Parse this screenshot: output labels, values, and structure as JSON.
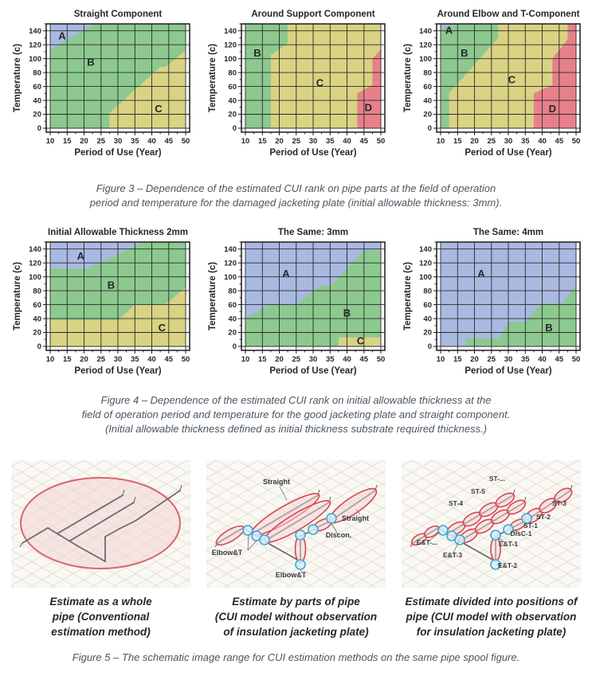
{
  "colors": {
    "blue": "#a9b9e1",
    "green": "#8cc98f",
    "yellow": "#d9d383",
    "red": "#e8808b",
    "grid": "#2b2b2b",
    "frame": "#1a1a1a",
    "axis_text": "#26262e",
    "caption_text": "#4b5661"
  },
  "figure3": {
    "caption": [
      "Figure 3 – Dependence of the estimated CUI rank on pipe parts at the field of operation",
      "period and temperature for the damaged jacketing plate (initial allowable thickness: 3mm)."
    ]
  },
  "figure4": {
    "caption": [
      "Figure 4 – Dependence of the estimated CUI rank on initial allowable thickness at the",
      "field of operation period and temperature for the good jacketing plate and straight component.",
      "(Initial allowable thickness defined as initial thickness substrate required thickness.)"
    ]
  },
  "figure5": {
    "caption": "Figure 5 – The schematic image range for CUI estimation methods on the same pipe spool figure.",
    "panels": [
      {
        "name": "whole-pipe",
        "caption": [
          "Estimate as a whole",
          "pipe (Conventional",
          "estimation method)"
        ],
        "labels": []
      },
      {
        "name": "parts-of-pipe",
        "caption": [
          "Estimate by parts of pipe",
          "(CUI model without observation",
          "of insulation jacketing plate)"
        ],
        "labels": [
          "Straight",
          "Straight",
          "Discon.",
          "Elbow&T",
          "Elbow&T"
        ]
      },
      {
        "name": "positions-of-pipe",
        "caption": [
          "Estimate divided into positions of",
          "pipe (CUI model with observation",
          "for insulation jacketing plate)"
        ],
        "labels": [
          "ST-...",
          "ST-5",
          "ST-4",
          "ST-3",
          "ST-2",
          "ST-1",
          "DisC-1",
          "E&T-1",
          "E&T-2",
          "E&T-3",
          "E&T-..."
        ]
      }
    ]
  },
  "chart_data": [
    {
      "type": "heatmap",
      "figure": 3,
      "title": "Straight Component",
      "xlabel": "Period of Use (Year)",
      "ylabel": "Temperature (c)",
      "xlim": [
        10,
        50
      ],
      "ylim": [
        0,
        150
      ],
      "xticks": [
        10,
        15,
        20,
        25,
        30,
        35,
        40,
        45,
        50
      ],
      "yticks": [
        0,
        20,
        40,
        60,
        80,
        100,
        120,
        140
      ],
      "regions": [
        {
          "rank": "B",
          "color_key": "green",
          "polygon": [
            [
              10,
              0
            ],
            [
              50,
              0
            ],
            [
              50,
              150
            ],
            [
              10,
              150
            ]
          ],
          "label_at": [
            22,
            95
          ]
        },
        {
          "rank": "A",
          "color_key": "blue",
          "polygon": [
            [
              10,
              113
            ],
            [
              23,
              150
            ],
            [
              10,
              150
            ]
          ],
          "label_at": [
            13.5,
            133
          ]
        },
        {
          "rank": "C",
          "color_key": "yellow",
          "polygon": [
            [
              27.5,
              0
            ],
            [
              50,
              0
            ],
            [
              50,
              112
            ],
            [
              44,
              88
            ],
            [
              42.5,
              88
            ],
            [
              27.5,
              22
            ]
          ],
          "label_at": [
            42,
            28
          ]
        }
      ]
    },
    {
      "type": "heatmap",
      "figure": 3,
      "title": "Around Support Component",
      "xlabel": "Period of Use (Year)",
      "ylabel": "Temperature (c)",
      "xlim": [
        10,
        50
      ],
      "ylim": [
        0,
        150
      ],
      "xticks": [
        10,
        15,
        20,
        25,
        30,
        35,
        40,
        45,
        50
      ],
      "yticks": [
        0,
        20,
        40,
        60,
        80,
        100,
        120,
        140
      ],
      "regions": [
        {
          "rank": "C",
          "color_key": "yellow",
          "polygon": [
            [
              10,
              0
            ],
            [
              50,
              0
            ],
            [
              50,
              150
            ],
            [
              10,
              150
            ]
          ],
          "label_at": [
            32,
            65
          ]
        },
        {
          "rank": "B",
          "color_key": "green",
          "polygon": [
            [
              10,
              0
            ],
            [
              17.5,
              0
            ],
            [
              17.5,
              105
            ],
            [
              22.5,
              122
            ],
            [
              22.5,
              150
            ],
            [
              10,
              150
            ]
          ],
          "label_at": [
            13.5,
            108
          ]
        },
        {
          "rank": "D",
          "color_key": "red",
          "polygon": [
            [
              43,
              0
            ],
            [
              50,
              0
            ],
            [
              50,
              113
            ],
            [
              47.5,
              100
            ],
            [
              47.5,
              62
            ],
            [
              43,
              50
            ]
          ],
          "label_at": [
            46.3,
            30
          ]
        }
      ]
    },
    {
      "type": "heatmap",
      "figure": 3,
      "title": "Around Elbow and T-Component",
      "xlabel": "Period of Use (Year)",
      "ylabel": "Temperature (c)",
      "xlim": [
        10,
        50
      ],
      "ylim": [
        0,
        150
      ],
      "xticks": [
        10,
        15,
        20,
        25,
        30,
        35,
        40,
        45,
        50
      ],
      "yticks": [
        0,
        20,
        40,
        60,
        80,
        100,
        120,
        140
      ],
      "regions": [
        {
          "rank": "C",
          "color_key": "yellow",
          "polygon": [
            [
              10,
              0
            ],
            [
              50,
              0
            ],
            [
              50,
              150
            ],
            [
              10,
              150
            ]
          ],
          "label_at": [
            31,
            70
          ]
        },
        {
          "rank": "B",
          "color_key": "green",
          "polygon": [
            [
              10,
              0
            ],
            [
              12.5,
              0
            ],
            [
              12.5,
              50
            ],
            [
              27,
              130
            ],
            [
              27,
              150
            ],
            [
              10,
              150
            ]
          ],
          "label_at": [
            17,
            108
          ]
        },
        {
          "rank": "D",
          "color_key": "red",
          "polygon": [
            [
              37.5,
              0
            ],
            [
              50,
              0
            ],
            [
              50,
              150
            ],
            [
              47.5,
              150
            ],
            [
              47.5,
              128
            ],
            [
              43,
              100
            ],
            [
              43,
              62
            ],
            [
              37.5,
              50
            ]
          ],
          "label_at": [
            43,
            28
          ]
        },
        {
          "rank": "A",
          "color_key": "blue",
          "polygon": [
            [
              10,
              142
            ],
            [
              13.5,
              150
            ],
            [
              10,
              150
            ]
          ],
          "label_at": [
            12.5,
            141
          ]
        }
      ]
    },
    {
      "type": "heatmap",
      "figure": 4,
      "title": "Initial Allowable Thickness 2mm",
      "xlabel": "Period of Use (Year)",
      "ylabel": "Temperature (c)",
      "xlim": [
        10,
        50
      ],
      "ylim": [
        0,
        150
      ],
      "xticks": [
        10,
        15,
        20,
        25,
        30,
        35,
        40,
        45,
        50
      ],
      "yticks": [
        0,
        20,
        40,
        60,
        80,
        100,
        120,
        140
      ],
      "regions": [
        {
          "rank": "B",
          "color_key": "green",
          "polygon": [
            [
              10,
              0
            ],
            [
              50,
              0
            ],
            [
              50,
              150
            ],
            [
              10,
              150
            ]
          ],
          "label_at": [
            28,
            88
          ]
        },
        {
          "rank": "A",
          "color_key": "blue",
          "polygon": [
            [
              10,
              112
            ],
            [
              21,
              112
            ],
            [
              37.5,
              150
            ],
            [
              10,
              150
            ]
          ],
          "label_at": [
            19,
            130
          ]
        },
        {
          "rank": "C",
          "color_key": "yellow",
          "polygon": [
            [
              10,
              0
            ],
            [
              50,
              0
            ],
            [
              50,
              85
            ],
            [
              44,
              60
            ],
            [
              35,
              60
            ],
            [
              30,
              38
            ],
            [
              10,
              38
            ]
          ],
          "label_at": [
            43,
            27
          ]
        }
      ]
    },
    {
      "type": "heatmap",
      "figure": 4,
      "title": "The Same: 3mm",
      "xlabel": "Period of Use (Year)",
      "ylabel": "Temperature (c)",
      "xlim": [
        10,
        50
      ],
      "ylim": [
        0,
        150
      ],
      "xticks": [
        10,
        15,
        20,
        25,
        30,
        35,
        40,
        45,
        50
      ],
      "yticks": [
        0,
        20,
        40,
        60,
        80,
        100,
        120,
        140
      ],
      "regions": [
        {
          "rank": "B",
          "color_key": "green",
          "polygon": [
            [
              10,
              0
            ],
            [
              50,
              0
            ],
            [
              50,
              150
            ],
            [
              10,
              150
            ]
          ],
          "label_at": [
            40,
            48
          ]
        },
        {
          "rank": "A",
          "color_key": "blue",
          "polygon": [
            [
              10,
              40
            ],
            [
              17,
              60
            ],
            [
              25,
              60
            ],
            [
              32,
              87
            ],
            [
              35,
              87
            ],
            [
              45,
              138
            ],
            [
              50,
              138
            ],
            [
              50,
              150
            ],
            [
              10,
              150
            ]
          ],
          "label_at": [
            22,
            105
          ]
        },
        {
          "rank": "C",
          "color_key": "yellow",
          "polygon": [
            [
              37.5,
              0
            ],
            [
              50,
              0
            ],
            [
              50,
              13
            ],
            [
              37.5,
              13
            ]
          ],
          "label_at": [
            44,
            8
          ]
        }
      ]
    },
    {
      "type": "heatmap",
      "figure": 4,
      "title": "The Same: 4mm",
      "xlabel": "Period of Use (Year)",
      "ylabel": "Temperature (c)",
      "xlim": [
        10,
        50
      ],
      "ylim": [
        0,
        150
      ],
      "xticks": [
        10,
        15,
        20,
        25,
        30,
        35,
        40,
        45,
        50
      ],
      "yticks": [
        0,
        20,
        40,
        60,
        80,
        100,
        120,
        140
      ],
      "regions": [
        {
          "rank": "A",
          "color_key": "blue",
          "polygon": [
            [
              10,
              0
            ],
            [
              50,
              0
            ],
            [
              50,
              150
            ],
            [
              10,
              150
            ]
          ],
          "label_at": [
            22,
            105
          ]
        },
        {
          "rank": "B",
          "color_key": "green",
          "polygon": [
            [
              17.5,
              0
            ],
            [
              50,
              0
            ],
            [
              50,
              88
            ],
            [
              46,
              62
            ],
            [
              40,
              62
            ],
            [
              35,
              35
            ],
            [
              30,
              35
            ],
            [
              27.5,
              12
            ],
            [
              17.5,
              12
            ]
          ],
          "label_at": [
            42,
            27
          ]
        }
      ]
    }
  ]
}
